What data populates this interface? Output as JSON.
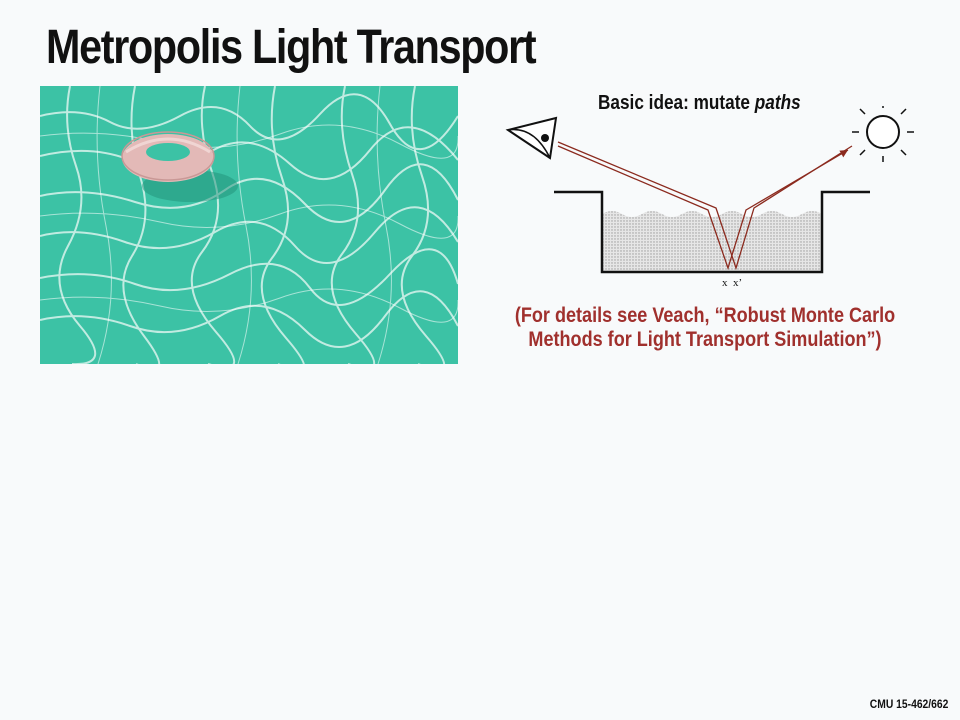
{
  "slide": {
    "title": "Metropolis Light Transport",
    "idea_label": "Basic idea: mutate ",
    "idea_emphasis": "paths",
    "details_line1": "(For details see Veach, “Robust Monte Carlo",
    "details_line2": "Methods for Light Transport Simulation”)",
    "footer": "CMU 15-462/662"
  },
  "diagram": {
    "point_x": "x",
    "point_x_prime": "x’"
  },
  "colors": {
    "pool_water": "#3cc2a5",
    "caustic": "#d9f3ec",
    "accent_red": "#a0302d",
    "ray": "#8b2a1e"
  }
}
